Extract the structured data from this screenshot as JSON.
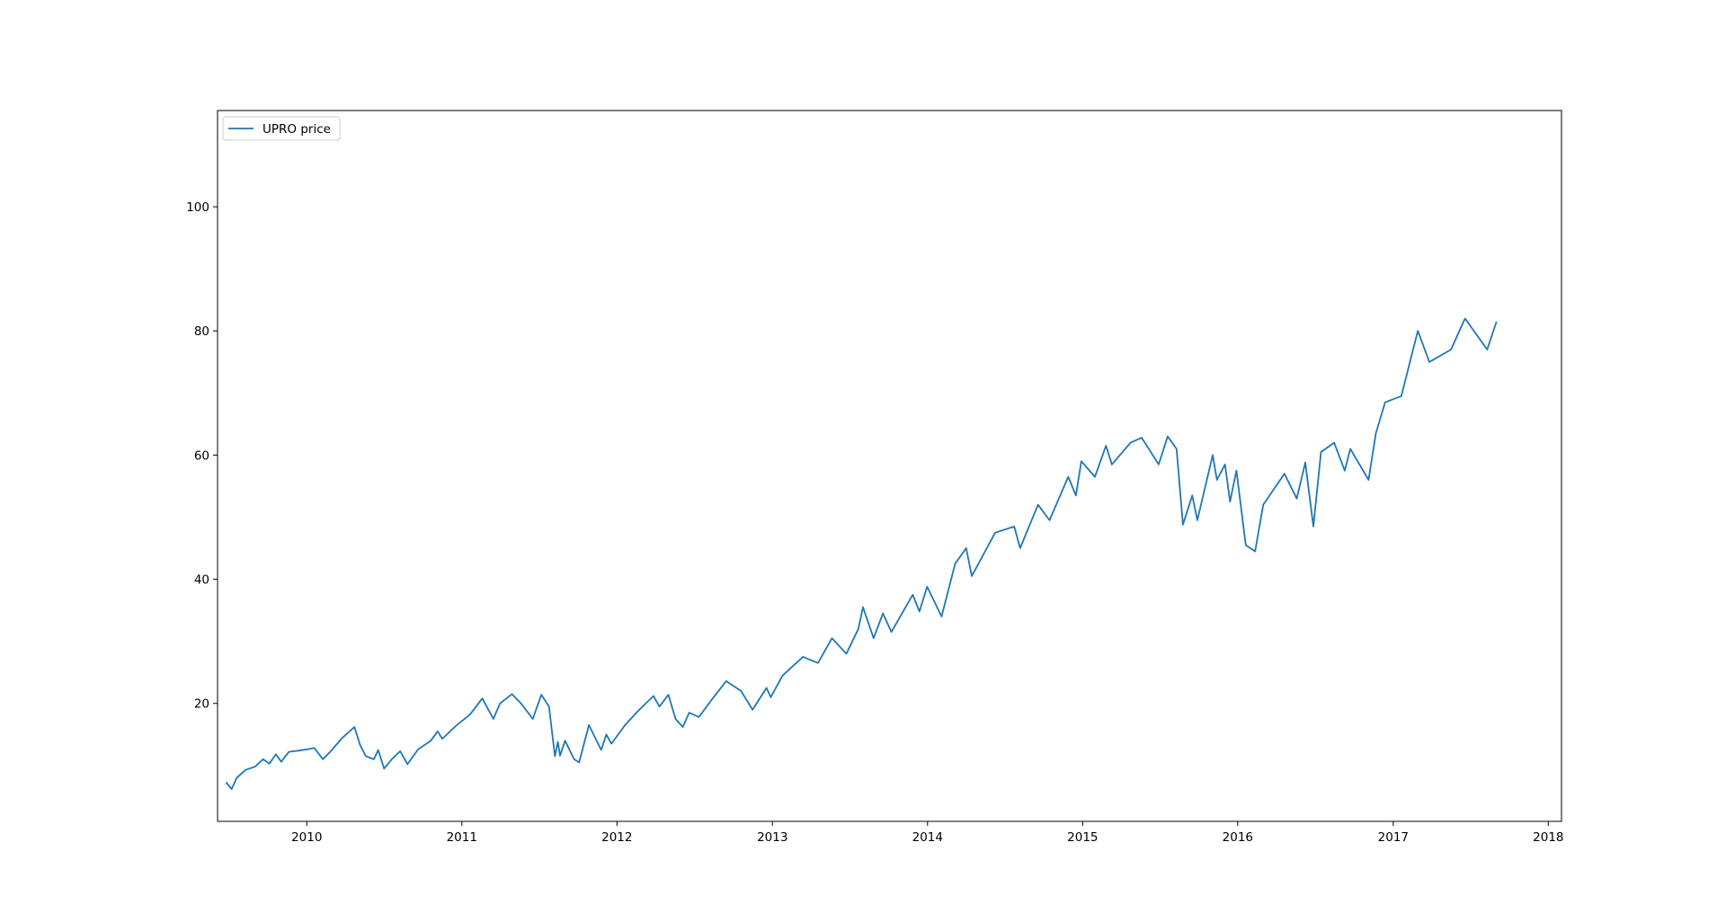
{
  "chart_data": {
    "type": "line",
    "title": "",
    "xlabel": "",
    "ylabel": "",
    "x_axis_type": "date",
    "xlim": [
      "2009-06-05",
      "2018-02-01"
    ],
    "ylim": [
      1.0,
      115.5
    ],
    "x_ticks": [
      "2010",
      "2011",
      "2012",
      "2013",
      "2014",
      "2015",
      "2016",
      "2017",
      "2018"
    ],
    "y_ticks": [
      20,
      40,
      60,
      80,
      100
    ],
    "grid": false,
    "legend_position": "top-left",
    "series": [
      {
        "name": "UPRO price",
        "color": "#1f77b4",
        "points": [
          [
            "2009-06-25",
            7.3
          ],
          [
            "2009-07-08",
            6.2
          ],
          [
            "2009-07-20",
            8.0
          ],
          [
            "2009-08-10",
            9.3
          ],
          [
            "2009-09-01",
            9.8
          ],
          [
            "2009-09-20",
            11.0
          ],
          [
            "2009-10-05",
            10.3
          ],
          [
            "2009-10-20",
            11.8
          ],
          [
            "2009-11-02",
            10.6
          ],
          [
            "2009-11-20",
            12.2
          ],
          [
            "2009-12-15",
            12.4
          ],
          [
            "2010-01-19",
            12.8
          ],
          [
            "2010-02-08",
            11.0
          ],
          [
            "2010-02-25",
            12.2
          ],
          [
            "2010-03-25",
            14.4
          ],
          [
            "2010-04-23",
            16.2
          ],
          [
            "2010-05-07",
            13.2
          ],
          [
            "2010-05-20",
            11.5
          ],
          [
            "2010-06-08",
            11.0
          ],
          [
            "2010-06-18",
            12.5
          ],
          [
            "2010-07-02",
            9.5
          ],
          [
            "2010-07-20",
            11.0
          ],
          [
            "2010-08-09",
            12.3
          ],
          [
            "2010-08-26",
            10.2
          ],
          [
            "2010-09-20",
            12.6
          ],
          [
            "2010-10-20",
            14.0
          ],
          [
            "2010-11-05",
            15.5
          ],
          [
            "2010-11-16",
            14.3
          ],
          [
            "2010-12-20",
            16.5
          ],
          [
            "2011-01-20",
            18.2
          ],
          [
            "2011-02-18",
            20.8
          ],
          [
            "2011-03-16",
            17.5
          ],
          [
            "2011-04-01",
            20.0
          ],
          [
            "2011-04-29",
            21.5
          ],
          [
            "2011-05-20",
            20.0
          ],
          [
            "2011-06-17",
            17.5
          ],
          [
            "2011-07-07",
            21.4
          ],
          [
            "2011-07-25",
            19.5
          ],
          [
            "2011-08-08",
            11.5
          ],
          [
            "2011-08-15",
            13.8
          ],
          [
            "2011-08-20",
            11.6
          ],
          [
            "2011-09-01",
            14.0
          ],
          [
            "2011-09-22",
            11.0
          ],
          [
            "2011-10-04",
            10.5
          ],
          [
            "2011-10-27",
            16.5
          ],
          [
            "2011-11-25",
            12.5
          ],
          [
            "2011-12-07",
            15.0
          ],
          [
            "2011-12-19",
            13.5
          ],
          [
            "2012-01-20",
            16.5
          ],
          [
            "2012-02-20",
            18.8
          ],
          [
            "2012-03-27",
            21.2
          ],
          [
            "2012-04-10",
            19.5
          ],
          [
            "2012-05-01",
            21.4
          ],
          [
            "2012-05-18",
            17.5
          ],
          [
            "2012-06-04",
            16.2
          ],
          [
            "2012-06-19",
            18.5
          ],
          [
            "2012-07-12",
            17.8
          ],
          [
            "2012-08-10",
            20.5
          ],
          [
            "2012-09-14",
            23.6
          ],
          [
            "2012-10-19",
            22.0
          ],
          [
            "2012-11-15",
            19.0
          ],
          [
            "2012-12-18",
            22.5
          ],
          [
            "2012-12-28",
            21.0
          ],
          [
            "2013-01-25",
            24.5
          ],
          [
            "2013-03-14",
            27.5
          ],
          [
            "2013-04-18",
            26.5
          ],
          [
            "2013-05-21",
            30.5
          ],
          [
            "2013-06-24",
            28.0
          ],
          [
            "2013-07-22",
            32.0
          ],
          [
            "2013-08-02",
            35.5
          ],
          [
            "2013-08-27",
            30.5
          ],
          [
            "2013-09-18",
            34.5
          ],
          [
            "2013-10-08",
            31.5
          ],
          [
            "2013-11-27",
            37.5
          ],
          [
            "2013-12-13",
            34.8
          ],
          [
            "2013-12-31",
            38.8
          ],
          [
            "2014-02-03",
            34.0
          ],
          [
            "2014-03-07",
            42.5
          ],
          [
            "2014-04-02",
            45.0
          ],
          [
            "2014-04-15",
            40.5
          ],
          [
            "2014-06-09",
            47.5
          ],
          [
            "2014-07-24",
            48.5
          ],
          [
            "2014-08-07",
            45.0
          ],
          [
            "2014-09-18",
            52.0
          ],
          [
            "2014-10-15",
            49.5
          ],
          [
            "2014-11-28",
            56.5
          ],
          [
            "2014-12-16",
            53.5
          ],
          [
            "2014-12-29",
            59.0
          ],
          [
            "2015-01-30",
            56.5
          ],
          [
            "2015-02-25",
            61.5
          ],
          [
            "2015-03-11",
            58.5
          ],
          [
            "2015-04-24",
            62.0
          ],
          [
            "2015-05-20",
            62.8
          ],
          [
            "2015-06-29",
            58.5
          ],
          [
            "2015-07-20",
            63.0
          ],
          [
            "2015-08-10",
            61.0
          ],
          [
            "2015-08-25",
            48.8
          ],
          [
            "2015-09-16",
            53.5
          ],
          [
            "2015-09-28",
            49.5
          ],
          [
            "2015-11-03",
            60.0
          ],
          [
            "2015-11-13",
            56.0
          ],
          [
            "2015-12-02",
            58.5
          ],
          [
            "2015-12-14",
            52.5
          ],
          [
            "2015-12-29",
            57.5
          ],
          [
            "2016-01-20",
            45.5
          ],
          [
            "2016-02-11",
            44.5
          ],
          [
            "2016-03-01",
            52.0
          ],
          [
            "2016-04-20",
            57.0
          ],
          [
            "2016-05-19",
            53.0
          ],
          [
            "2016-06-08",
            58.8
          ],
          [
            "2016-06-27",
            48.5
          ],
          [
            "2016-07-15",
            60.5
          ],
          [
            "2016-08-15",
            62.0
          ],
          [
            "2016-09-09",
            57.5
          ],
          [
            "2016-09-22",
            61.0
          ],
          [
            "2016-11-04",
            56.0
          ],
          [
            "2016-11-21",
            63.5
          ],
          [
            "2016-12-13",
            68.5
          ],
          [
            "2017-01-20",
            69.5
          ],
          [
            "2017-02-28",
            80.0
          ],
          [
            "2017-03-27",
            75.0
          ],
          [
            "2017-05-17",
            77.0
          ],
          [
            "2017-06-19",
            82.0
          ],
          [
            "2017-08-10",
            77.0
          ],
          [
            "2017-09-01",
            81.5
          ]
        ]
      }
    ]
  }
}
